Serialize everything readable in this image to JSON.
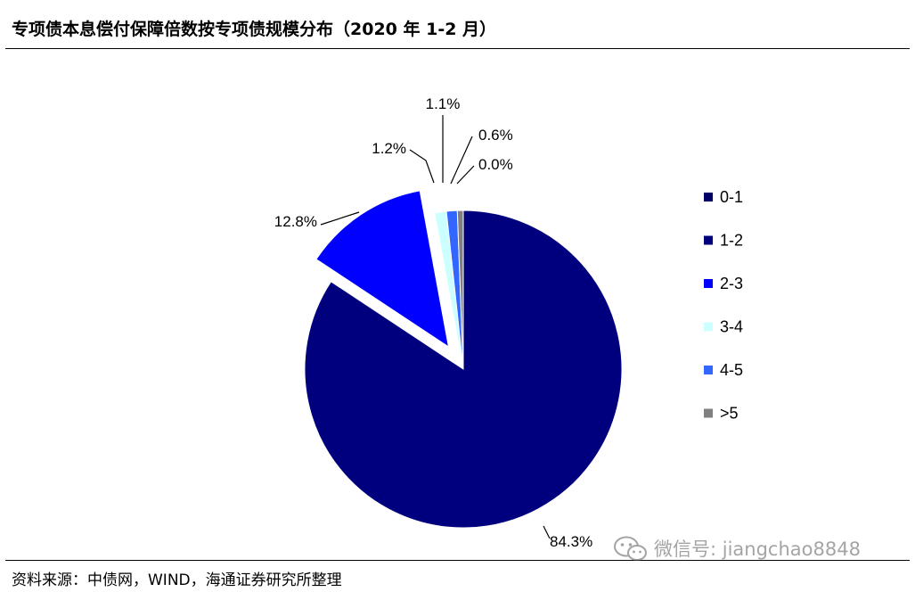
{
  "header": {
    "title": "专项债本息偿付保障倍数按专项债规模分布（2020 年 1-2 月）"
  },
  "footer": {
    "source": "资料来源：中债网，WIND，海通证券研究所整理",
    "watermark": "微信号: jiangchao8848",
    "watermark_icon": "wechat-icon"
  },
  "chart_data": {
    "type": "pie",
    "title": "",
    "categories": [
      "0-1",
      "1-2",
      "2-3",
      "3-4",
      "4-5",
      ">5"
    ],
    "values": [
      0.0,
      84.3,
      12.8,
      1.2,
      1.1,
      0.6
    ],
    "labels": [
      "0.0%",
      "84.3%",
      "12.8%",
      "1.2%",
      "1.1%",
      "0.6%"
    ],
    "colors": [
      "#000066",
      "#00007F",
      "#0000FF",
      "#CCFFFF",
      "#3366FF",
      "#808080"
    ],
    "exploded": [
      "2-3"
    ],
    "legend": "right"
  }
}
